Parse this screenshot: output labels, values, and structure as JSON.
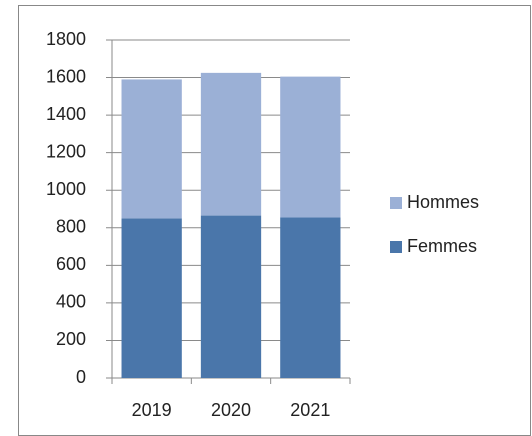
{
  "chart_data": {
    "type": "stacked_bar",
    "categories": [
      "2019",
      "2020",
      "2021"
    ],
    "series": [
      {
        "name": "Femmes",
        "color": "#4a76aa",
        "values": [
          850,
          865,
          855
        ]
      },
      {
        "name": "Hommes",
        "color": "#9bb0d6",
        "values": [
          740,
          760,
          750
        ]
      }
    ],
    "ylim": [
      0,
      1800
    ],
    "yticks": [
      0,
      200,
      400,
      600,
      800,
      1000,
      1200,
      1400,
      1600,
      1800
    ],
    "grid": true,
    "legend": "right"
  }
}
